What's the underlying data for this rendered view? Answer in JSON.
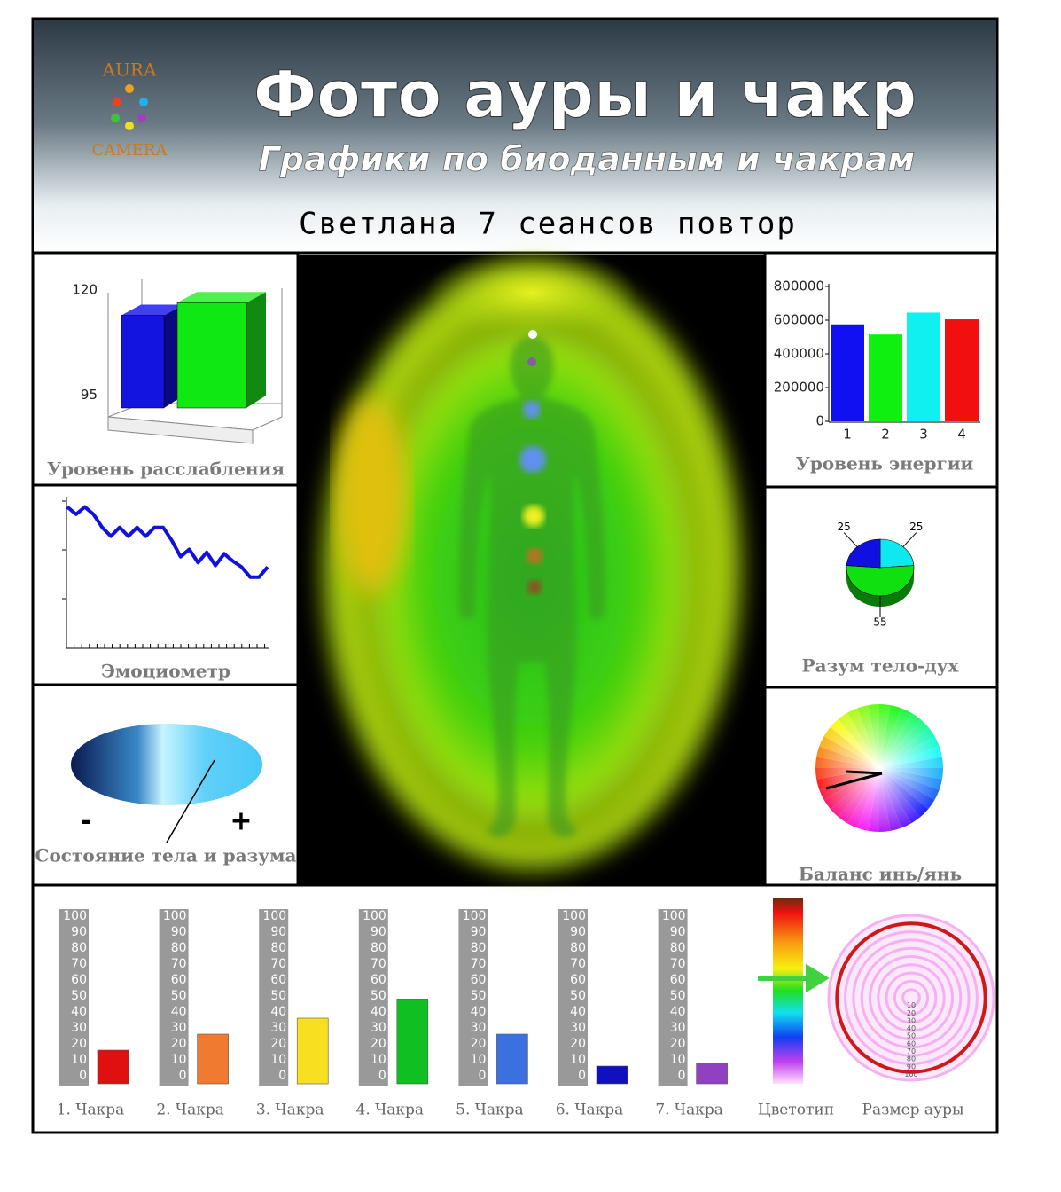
{
  "header": {
    "logo_top": "AURA",
    "logo_bottom": "CAMERA",
    "title": "Фото ауры и чакр",
    "subtitle": "Графики по биоданным и чакрам",
    "client": "Светлана 7 сеансов повтор"
  },
  "chart_data": [
    {
      "type": "bar3d",
      "title": "Уровень расслабления",
      "categories": [
        null,
        null
      ],
      "values": [
        114,
        117
      ],
      "colors": [
        "#1414e0",
        "#10e814"
      ],
      "ylim": [
        93,
        120
      ],
      "yticks": [
        95,
        120
      ]
    },
    {
      "type": "bar",
      "title": "Уровень энергии",
      "categories": [
        "1",
        "2",
        "3",
        "4"
      ],
      "values": [
        575000,
        515000,
        645000,
        605000
      ],
      "colors": [
        "#1010f0",
        "#10f010",
        "#10f0f0",
        "#f01010"
      ],
      "ylim": [
        0,
        800000
      ],
      "yticks": [
        0,
        200000,
        400000,
        600000,
        800000
      ]
    },
    {
      "type": "line",
      "title": "Эмоциометр",
      "values": [
        96,
        91,
        96,
        91,
        82,
        76,
        82,
        76,
        82,
        76,
        82,
        82,
        73,
        62,
        67,
        58,
        65,
        56,
        64,
        59,
        55,
        48,
        48,
        55
      ],
      "color": "#1010e0",
      "ylim": [
        0,
        100
      ]
    },
    {
      "type": "gauge",
      "title": "Состояние тела и разума",
      "min_label": "-",
      "max_label": "+",
      "value": 75,
      "range": [
        0,
        100
      ]
    },
    {
      "type": "pie",
      "title": "Разум тело-дух",
      "values": [
        25,
        55,
        25
      ],
      "colors": [
        "#10e8f0",
        "#10e010",
        "#1010e0"
      ]
    },
    {
      "type": "color-wheel",
      "title": "Баланс инь/янь"
    },
    {
      "type": "chakra-bars",
      "categories": [
        "1. Чакра",
        "2. Чакра",
        "3. Чакра",
        "4. Чакра",
        "5. Чакра",
        "6. Чакра",
        "7. Чакра"
      ],
      "values": [
        20,
        30,
        40,
        52,
        30,
        10,
        12
      ],
      "colors": [
        "#e01010",
        "#f07a30",
        "#f8e020",
        "#10c020",
        "#3a70e0",
        "#1010c0",
        "#9040c0"
      ],
      "ylim": [
        0,
        100
      ],
      "yticks": [
        0,
        10,
        20,
        30,
        40,
        50,
        60,
        70,
        80,
        90,
        100
      ]
    },
    {
      "type": "spectrum",
      "title": "Цветотип"
    },
    {
      "type": "rings",
      "title": "Размер ауры",
      "ticks": [
        10,
        20,
        30,
        40,
        50,
        60,
        70,
        80,
        90,
        100
      ],
      "value": 90,
      "color": "#d01818"
    }
  ]
}
